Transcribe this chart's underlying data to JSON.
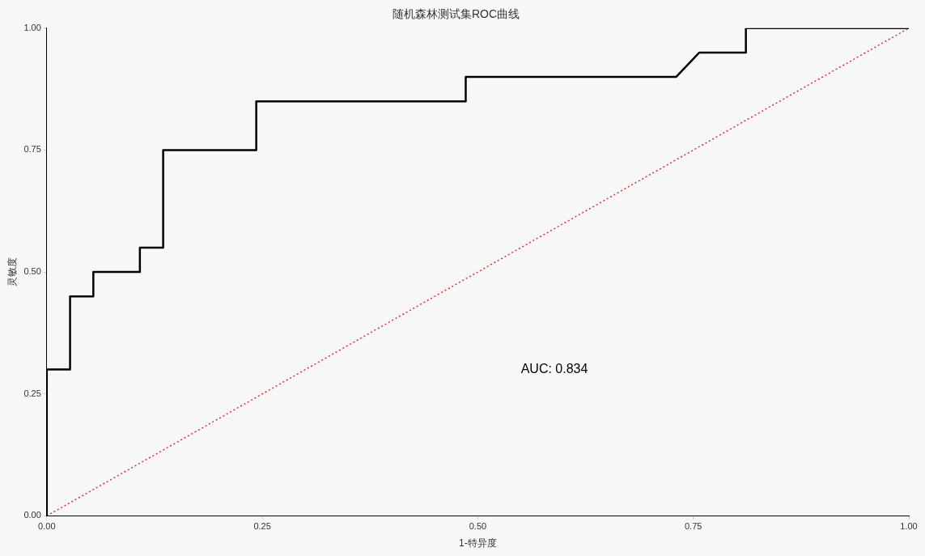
{
  "chart_data": {
    "type": "line",
    "title": "随机森林测试集ROC曲线",
    "xlabel": "1-特异度",
    "ylabel": "灵敏度",
    "xlim": [
      0,
      1
    ],
    "ylim": [
      0,
      1
    ],
    "xticks": [
      {
        "value": 0,
        "label": "0.00"
      },
      {
        "value": 0.25,
        "label": "0.25"
      },
      {
        "value": 0.5,
        "label": "0.50"
      },
      {
        "value": 0.75,
        "label": "0.75"
      },
      {
        "value": 1,
        "label": "1.00"
      }
    ],
    "yticks": [
      {
        "value": 0,
        "label": "0.00"
      },
      {
        "value": 0.25,
        "label": "0.25"
      },
      {
        "value": 0.5,
        "label": "0.50"
      },
      {
        "value": 0.75,
        "label": "0.75"
      },
      {
        "value": 1,
        "label": "1.00"
      }
    ],
    "series": [
      {
        "color": "#000000",
        "line_style": "solid",
        "x": [
          0,
          0,
          0.027,
          0.027,
          0.054,
          0.054,
          0.108,
          0.108,
          0.135,
          0.135,
          0.243,
          0.243,
          0.486,
          0.486,
          0.73,
          0.757,
          0.811,
          0.811,
          1
        ],
        "values": [
          0,
          0.3,
          0.3,
          0.45,
          0.45,
          0.5,
          0.5,
          0.55,
          0.55,
          0.75,
          0.75,
          0.85,
          0.85,
          0.9,
          0.9,
          0.95,
          0.95,
          1,
          1
        ]
      },
      {
        "color": "#e03030",
        "line_style": "dotted",
        "x": [
          0,
          1
        ],
        "values": [
          0,
          1
        ]
      }
    ],
    "annotations": [
      "AUC: 0.834"
    ],
    "grid": false,
    "legend": false,
    "marker": "none"
  }
}
